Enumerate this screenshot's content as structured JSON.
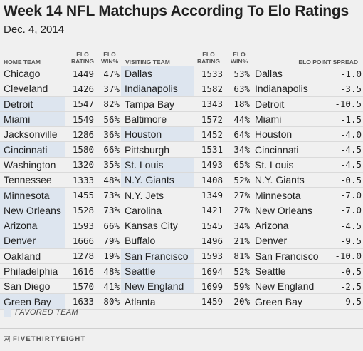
{
  "header": {
    "title": "Week 14 NFL Matchups According To Elo Ratings",
    "subtitle": "Dec. 4, 2014"
  },
  "columns": {
    "home_team": "HOME TEAM",
    "home_elo": "ELO",
    "home_rating": "RATING",
    "home_elo2": "ELO",
    "home_win": "WIN%",
    "visiting_team": "VISITING TEAM",
    "vis_elo": "ELO",
    "vis_rating": "RATING",
    "vis_elo2": "ELO",
    "vis_win": "WIN%",
    "spread": "ELO POINT SPREAD"
  },
  "legend": {
    "label": "FAVORED TEAM",
    "color": "#dde5ef"
  },
  "footer": {
    "logo_text": "FIVETHIRTYEIGHT"
  },
  "chart_data": {
    "type": "table",
    "title": "Week 14 NFL Matchups According To Elo Ratings",
    "subtitle": "Dec. 4, 2014",
    "rows": [
      {
        "home": "Chicago",
        "home_rating": "1449",
        "home_win": "47%",
        "visitor": "Dallas",
        "vis_rating": "1533",
        "vis_win": "53%",
        "spread_team": "Dallas",
        "spread": "-1.0",
        "favored": "visitor"
      },
      {
        "home": "Cleveland",
        "home_rating": "1426",
        "home_win": "37%",
        "visitor": "Indianapolis",
        "vis_rating": "1582",
        "vis_win": "63%",
        "spread_team": "Indianapolis",
        "spread": "-3.5",
        "favored": "visitor"
      },
      {
        "home": "Detroit",
        "home_rating": "1547",
        "home_win": "82%",
        "visitor": "Tampa Bay",
        "vis_rating": "1343",
        "vis_win": "18%",
        "spread_team": "Detroit",
        "spread": "-10.5",
        "favored": "home"
      },
      {
        "home": "Miami",
        "home_rating": "1549",
        "home_win": "56%",
        "visitor": "Baltimore",
        "vis_rating": "1572",
        "vis_win": "44%",
        "spread_team": "Miami",
        "spread": "-1.5",
        "favored": "home"
      },
      {
        "home": "Jacksonville",
        "home_rating": "1286",
        "home_win": "36%",
        "visitor": "Houston",
        "vis_rating": "1452",
        "vis_win": "64%",
        "spread_team": "Houston",
        "spread": "-4.0",
        "favored": "visitor"
      },
      {
        "home": "Cincinnati",
        "home_rating": "1580",
        "home_win": "66%",
        "visitor": "Pittsburgh",
        "vis_rating": "1531",
        "vis_win": "34%",
        "spread_team": "Cincinnati",
        "spread": "-4.5",
        "favored": "home"
      },
      {
        "home": "Washington",
        "home_rating": "1320",
        "home_win": "35%",
        "visitor": "St. Louis",
        "vis_rating": "1493",
        "vis_win": "65%",
        "spread_team": "St. Louis",
        "spread": "-4.5",
        "favored": "visitor"
      },
      {
        "home": "Tennessee",
        "home_rating": "1333",
        "home_win": "48%",
        "visitor": "N.Y. Giants",
        "vis_rating": "1408",
        "vis_win": "52%",
        "spread_team": "N.Y. Giants",
        "spread": "-0.5",
        "favored": "visitor"
      },
      {
        "home": "Minnesota",
        "home_rating": "1455",
        "home_win": "73%",
        "visitor": "N.Y. Jets",
        "vis_rating": "1349",
        "vis_win": "27%",
        "spread_team": "Minnesota",
        "spread": "-7.0",
        "favored": "home"
      },
      {
        "home": "New Orleans",
        "home_rating": "1528",
        "home_win": "73%",
        "visitor": "Carolina",
        "vis_rating": "1421",
        "vis_win": "27%",
        "spread_team": "New Orleans",
        "spread": "-7.0",
        "favored": "home"
      },
      {
        "home": "Arizona",
        "home_rating": "1593",
        "home_win": "66%",
        "visitor": "Kansas City",
        "vis_rating": "1545",
        "vis_win": "34%",
        "spread_team": "Arizona",
        "spread": "-4.5",
        "favored": "home"
      },
      {
        "home": "Denver",
        "home_rating": "1666",
        "home_win": "79%",
        "visitor": "Buffalo",
        "vis_rating": "1496",
        "vis_win": "21%",
        "spread_team": "Denver",
        "spread": "-9.5",
        "favored": "home"
      },
      {
        "home": "Oakland",
        "home_rating": "1278",
        "home_win": "19%",
        "visitor": "San Francisco",
        "vis_rating": "1593",
        "vis_win": "81%",
        "spread_team": "San Francisco",
        "spread": "-10.0",
        "favored": "visitor"
      },
      {
        "home": "Philadelphia",
        "home_rating": "1616",
        "home_win": "48%",
        "visitor": "Seattle",
        "vis_rating": "1694",
        "vis_win": "52%",
        "spread_team": "Seattle",
        "spread": "-0.5",
        "favored": "visitor"
      },
      {
        "home": "San Diego",
        "home_rating": "1570",
        "home_win": "41%",
        "visitor": "New England",
        "vis_rating": "1699",
        "vis_win": "59%",
        "spread_team": "New England",
        "spread": "-2.5",
        "favored": "visitor"
      },
      {
        "home": "Green Bay",
        "home_rating": "1633",
        "home_win": "80%",
        "visitor": "Atlanta",
        "vis_rating": "1459",
        "vis_win": "20%",
        "spread_team": "Green Bay",
        "spread": "-9.5",
        "favored": "home"
      }
    ]
  }
}
